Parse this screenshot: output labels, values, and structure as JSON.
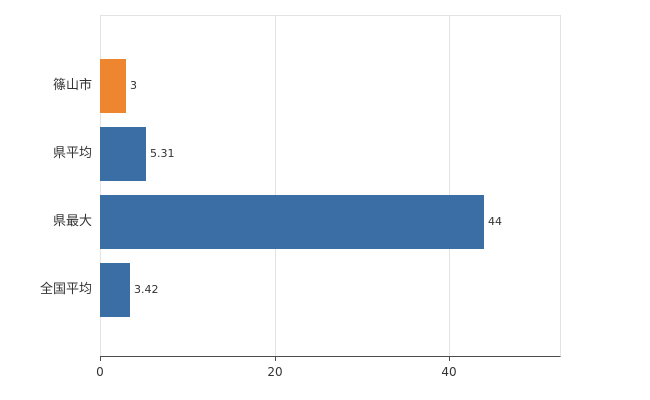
{
  "chart_data": {
    "type": "bar",
    "orientation": "horizontal",
    "title": "",
    "xlabel": "",
    "ylabel": "",
    "categories": [
      "篠山市",
      "県平均",
      "県最大",
      "全国平均"
    ],
    "values": [
      3,
      5.31,
      44,
      3.42
    ],
    "value_labels": [
      "3",
      "5.31",
      "44",
      "3.42"
    ],
    "bar_colors": [
      "#ed862f",
      "#3a6ea5",
      "#3a6ea5",
      "#3a6ea5"
    ],
    "xlim": [
      0,
      52.7
    ],
    "xticks": [
      0,
      20,
      40
    ],
    "grid": true,
    "legend": "none"
  },
  "colors": {
    "axis": "#4d4d4d",
    "grid": "#e3e3e3",
    "text": "#333333",
    "background": "#ffffff"
  }
}
